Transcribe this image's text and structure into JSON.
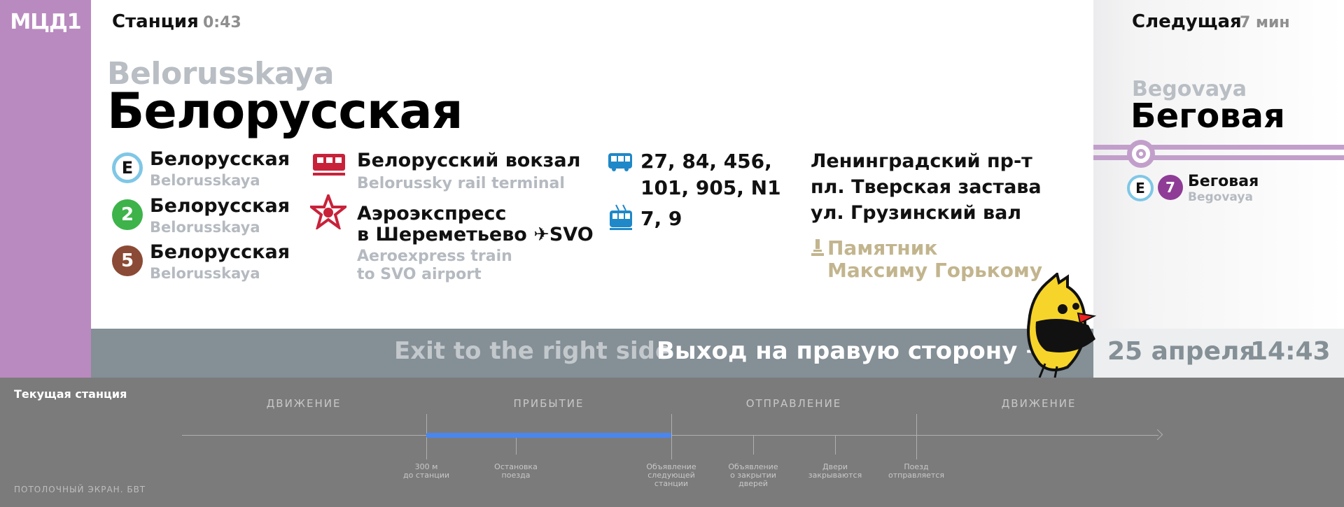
{
  "brand": {
    "label": "МЦД1",
    "color": "#b98abf"
  },
  "header": {
    "label": "Станция",
    "time": "0:43"
  },
  "station": {
    "name_en": "Belorusskaya",
    "name_ru": "Белорусская"
  },
  "transfers": [
    {
      "badge": "E",
      "name_ru": "Белорусская",
      "name_en": "Belorusskaya",
      "color": "#7fc7e6"
    },
    {
      "badge": "2",
      "name_ru": "Белорусская",
      "name_en": "Belorusskaya",
      "color": "#3db34a"
    },
    {
      "badge": "5",
      "name_ru": "Белорусская",
      "name_en": "Belorusskaya",
      "color": "#8b4a35"
    }
  ],
  "rail": {
    "ru": "Белорусский вокзал",
    "en": "Belorussky rail terminal",
    "icon": "train-icon"
  },
  "aeroexpress": {
    "ru_line1": "Аэроэкспресс",
    "ru_line2": "в Шереметьево ✈SVO",
    "en_line1": "Aeroexpress train",
    "en_line2": "to SVO airport",
    "icon": "aeroexpress-icon"
  },
  "bus": {
    "line1": "27, 84, 456,",
    "line2": "101, 905, N1",
    "icon": "bus-icon"
  },
  "trolley": {
    "routes": "7, 9",
    "icon": "trolleybus-icon"
  },
  "streets": [
    "Ленинградский пр-т",
    "пл. Тверская застава",
    "ул. Грузинский вал"
  ],
  "landmark": {
    "line1": "Памятник",
    "line2": "Максиму Горькому",
    "icon": "monument-icon"
  },
  "next": {
    "label": "Следущая",
    "time": "7 мин",
    "name_en": "Begovaya",
    "name_ru": "Беговая",
    "transfer_ru": "Беговая",
    "transfer_en": "Begovaya",
    "badge_e": "E",
    "badge_line": "7",
    "line_color": "#8e3c96"
  },
  "exit": {
    "en": "Exit to the right side",
    "ru": "Выход на правую сторону →"
  },
  "date": "25 апреля",
  "clock": "14:43",
  "timeline": {
    "current_label": "Текущая станция",
    "footer": "ПОТОЛОЧНЫЙ ЭКРАН. БВТ",
    "phases": [
      "ДВИЖЕНИЕ",
      "ПРИБЫТИЕ",
      "ОТПРАВЛЕНИЕ",
      "ДВИЖЕНИЕ"
    ],
    "events": [
      {
        "l1": "300 м",
        "l2": "до станции",
        "l3": ""
      },
      {
        "l1": "Остановка",
        "l2": "поезда",
        "l3": ""
      },
      {
        "l1": "Объявление",
        "l2": "следующей",
        "l3": "станции"
      },
      {
        "l1": "Объявление",
        "l2": "о закрытии",
        "l3": "дверей"
      },
      {
        "l1": "Двери",
        "l2": "закрываются",
        "l3": ""
      },
      {
        "l1": "Поезд",
        "l2": "отправляется",
        "l3": ""
      }
    ]
  }
}
